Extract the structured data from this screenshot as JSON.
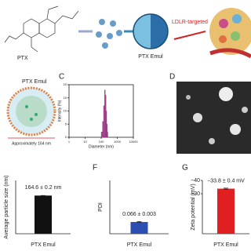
{
  "figure": {
    "ptx_label": "PTX",
    "emul_label": "PTX Emul",
    "ldlr_label": "LDLR-targeted",
    "panel_b": {
      "title": "PTX Emul",
      "size_note": "Approximately 164 nm"
    },
    "panel_c": "C",
    "panel_d": "D",
    "panel_f": "F",
    "panel_g": "G"
  },
  "chart_data": [
    {
      "type": "histogram",
      "ylabel": "Intensity (%)",
      "xlabel": "Diameter (nm)",
      "bins": [
        100,
        120,
        140,
        160,
        180,
        200,
        220,
        240,
        260
      ],
      "counts": [
        2,
        6,
        12,
        18,
        16,
        10,
        5,
        2
      ],
      "color": "#b0489a",
      "log_x": true,
      "xlim": [
        1,
        10000
      ],
      "xticks": [
        1,
        10,
        100,
        1000,
        10000
      ],
      "ylim": [
        0,
        20
      ],
      "yticks": [
        0,
        5,
        10,
        15,
        20
      ]
    },
    {
      "type": "bar",
      "ylabel": "Average particle size (nm)",
      "categories": [
        "PTX Emul"
      ],
      "values": [
        164.6
      ],
      "errors": [
        0.2
      ],
      "value_labels": [
        "164.6 ± 0.2 nm"
      ],
      "color": "#111111",
      "ylim": [
        0,
        230
      ]
    },
    {
      "type": "bar",
      "ylabel": "PDI",
      "categories": [
        "PTX Emul"
      ],
      "values": [
        0.066
      ],
      "errors": [
        0.003
      ],
      "value_labels": [
        "0.066 ± 0.003"
      ],
      "color": "#2a4fb0",
      "ylim": [
        0,
        0.3
      ]
    },
    {
      "type": "bar",
      "ylabel": "Zeta potential (mV)",
      "categories": [
        "PTX Emul"
      ],
      "values": [
        -33.8
      ],
      "errors": [
        0.4
      ],
      "value_labels": [
        "−33.8 ± 0.4 mV"
      ],
      "color": "#e02020",
      "ylim": [
        0,
        -40
      ],
      "yticks": [
        {
          "value": -40,
          "label": "−40"
        },
        {
          "value": -30,
          "label": "−30"
        }
      ]
    }
  ]
}
